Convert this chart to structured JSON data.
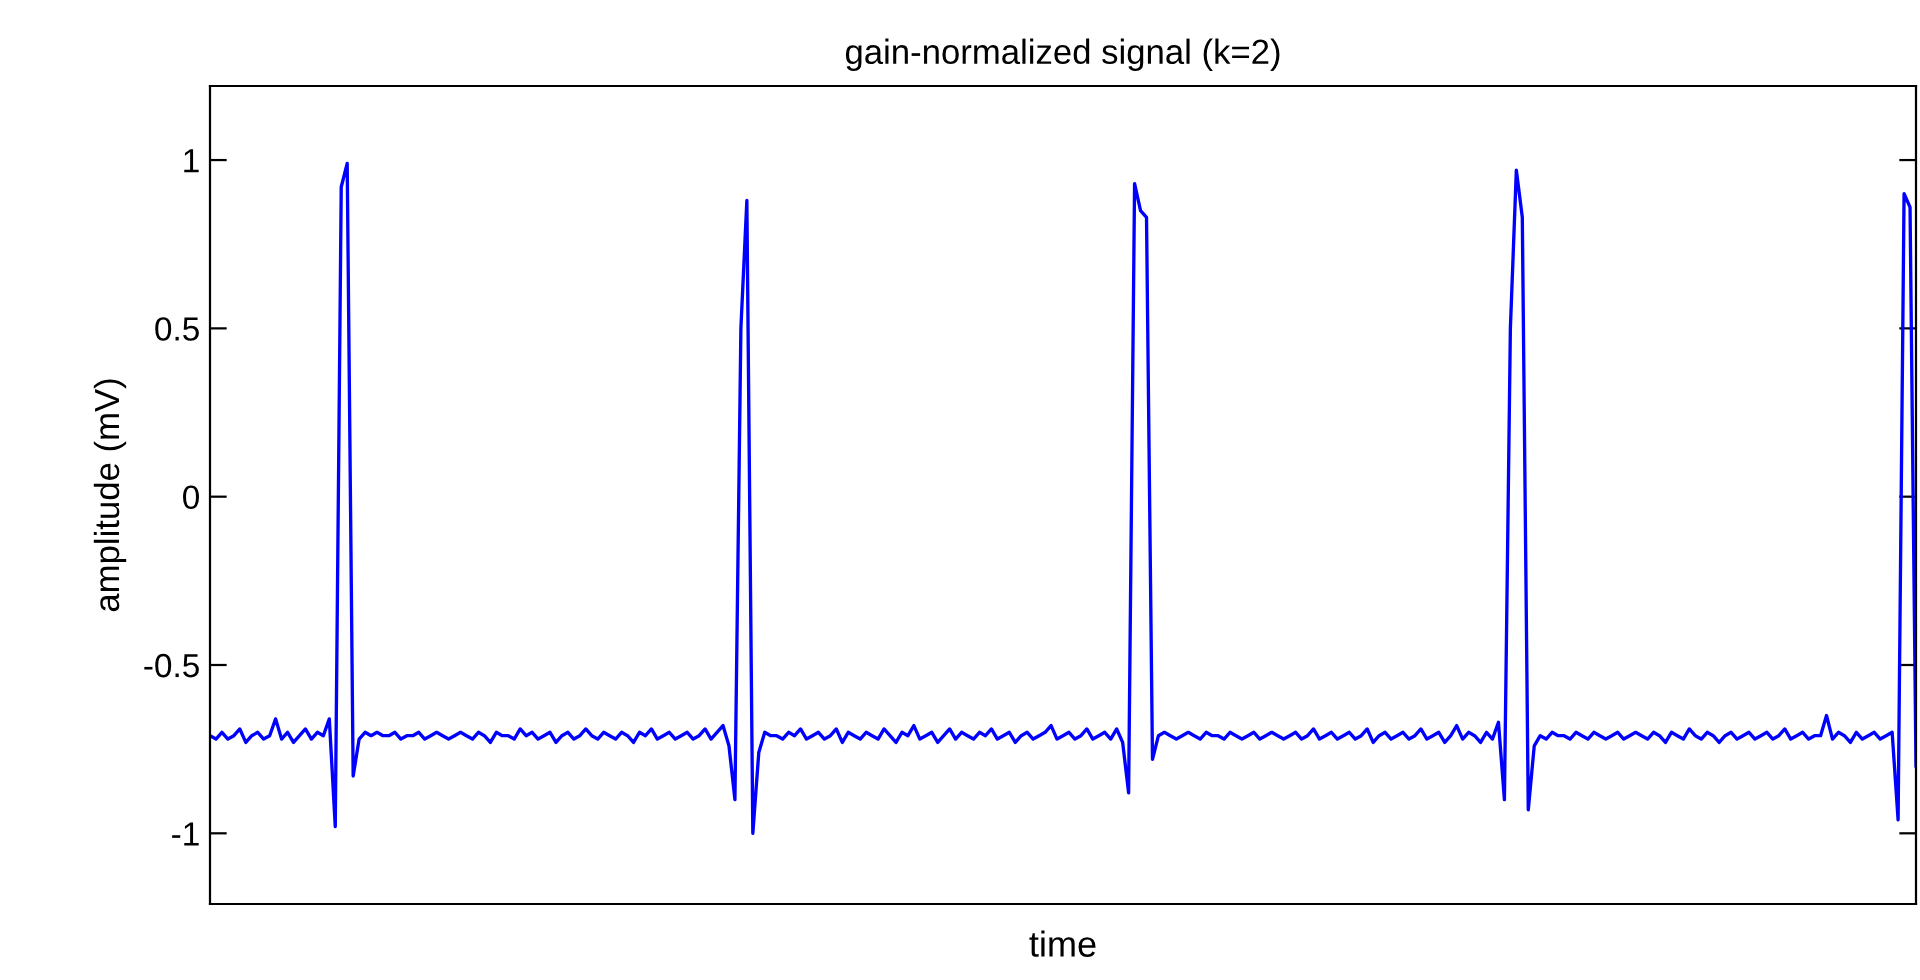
{
  "chart_data": {
    "type": "line",
    "title": "gain-normalized signal (k=2)",
    "xlabel": "time",
    "ylabel": "amplitude (mV)",
    "categories": [
      null,
      null,
      null,
      null,
      null,
      null,
      null,
      null,
      null,
      null,
      null,
      null,
      null,
      null,
      null,
      null,
      null,
      null,
      null,
      null,
      null,
      null,
      null,
      null,
      null,
      null,
      null,
      null,
      null,
      null,
      null,
      null,
      null,
      null,
      null,
      null,
      null,
      null,
      null,
      null,
      null,
      null,
      null,
      null,
      null,
      null,
      null,
      null,
      null,
      null,
      null,
      null,
      null,
      null,
      null,
      null,
      null,
      null,
      null,
      null,
      null,
      null,
      null,
      null,
      null,
      null,
      null,
      null,
      null,
      null,
      null,
      null,
      null,
      null,
      null,
      null,
      null,
      null,
      null,
      null,
      null,
      null,
      null,
      null,
      null,
      null,
      null,
      null,
      null,
      null,
      null,
      null,
      null,
      null,
      null,
      null,
      null,
      null,
      null,
      null,
      null,
      null,
      null,
      null,
      null,
      null,
      null,
      null,
      null,
      null,
      null,
      null,
      null,
      null,
      null,
      null,
      null,
      null,
      null,
      null,
      null,
      null,
      null,
      null,
      null,
      null,
      null,
      null,
      null,
      null,
      null,
      null,
      null,
      null,
      null,
      null,
      null,
      null,
      null,
      null,
      null,
      null,
      null,
      null,
      null,
      null,
      null,
      null,
      null,
      null,
      null,
      null,
      null,
      null,
      null,
      null,
      null,
      null,
      null,
      null,
      null,
      null,
      null,
      null,
      null,
      null,
      null,
      null,
      null,
      null,
      null,
      null,
      null,
      null,
      null,
      null,
      null,
      null,
      null,
      null,
      null,
      null,
      null,
      null,
      null,
      null,
      null,
      null,
      null,
      null,
      null,
      null,
      null,
      null,
      null,
      null,
      null,
      null,
      null,
      null,
      null,
      null,
      null,
      null,
      null,
      null,
      null,
      null,
      null,
      null,
      null,
      null,
      null,
      null,
      null,
      null,
      null,
      null,
      null,
      null,
      null,
      null,
      null,
      null,
      null,
      null,
      null,
      null,
      null,
      null,
      null,
      null,
      null,
      null,
      null,
      null,
      null,
      null,
      null,
      null,
      null,
      null,
      null,
      null,
      null,
      null,
      null,
      null,
      null,
      null,
      null,
      null,
      null,
      null,
      null,
      null,
      null,
      null,
      null,
      null,
      null,
      null,
      null,
      null,
      null,
      null,
      null,
      null,
      null,
      null,
      null,
      null,
      null,
      null,
      null,
      null,
      null,
      null,
      null,
      null,
      null,
      null,
      null,
      null,
      null,
      null,
      null
    ],
    "series": [
      {
        "color": "#0000ff",
        "values": [
          -0.71,
          -0.72,
          -0.7,
          -0.72,
          -0.71,
          -0.69,
          -0.73,
          -0.71,
          -0.7,
          -0.72,
          -0.71,
          -0.66,
          -0.72,
          -0.7,
          -0.73,
          -0.71,
          -0.69,
          -0.72,
          -0.7,
          -0.71,
          -0.66,
          -0.98,
          0.92,
          0.99,
          -0.83,
          -0.72,
          -0.7,
          -0.71,
          -0.7,
          -0.71,
          -0.71,
          -0.7,
          -0.72,
          -0.71,
          -0.71,
          -0.7,
          -0.72,
          -0.71,
          -0.7,
          -0.71,
          -0.72,
          -0.71,
          -0.7,
          -0.71,
          -0.72,
          -0.7,
          -0.71,
          -0.73,
          -0.7,
          -0.71,
          -0.71,
          -0.72,
          -0.69,
          -0.71,
          -0.7,
          -0.72,
          -0.71,
          -0.7,
          -0.73,
          -0.71,
          -0.7,
          -0.72,
          -0.71,
          -0.69,
          -0.71,
          -0.72,
          -0.7,
          -0.71,
          -0.72,
          -0.7,
          -0.71,
          -0.73,
          -0.7,
          -0.71,
          -0.69,
          -0.72,
          -0.71,
          -0.7,
          -0.72,
          -0.71,
          -0.7,
          -0.72,
          -0.71,
          -0.69,
          -0.72,
          -0.7,
          -0.68,
          -0.74,
          -0.9,
          0.5,
          0.88,
          -1.0,
          -0.76,
          -0.7,
          -0.71,
          -0.71,
          -0.72,
          -0.7,
          -0.71,
          -0.69,
          -0.72,
          -0.71,
          -0.7,
          -0.72,
          -0.71,
          -0.69,
          -0.73,
          -0.7,
          -0.71,
          -0.72,
          -0.7,
          -0.71,
          -0.72,
          -0.69,
          -0.71,
          -0.73,
          -0.7,
          -0.71,
          -0.68,
          -0.72,
          -0.71,
          -0.7,
          -0.73,
          -0.71,
          -0.69,
          -0.72,
          -0.7,
          -0.71,
          -0.72,
          -0.7,
          -0.71,
          -0.69,
          -0.72,
          -0.71,
          -0.7,
          -0.73,
          -0.71,
          -0.7,
          -0.72,
          -0.71,
          -0.7,
          -0.68,
          -0.72,
          -0.71,
          -0.7,
          -0.72,
          -0.71,
          -0.69,
          -0.72,
          -0.71,
          -0.7,
          -0.72,
          -0.69,
          -0.73,
          -0.88,
          0.93,
          0.85,
          0.83,
          -0.78,
          -0.71,
          -0.7,
          -0.71,
          -0.72,
          -0.71,
          -0.7,
          -0.71,
          -0.72,
          -0.7,
          -0.71,
          -0.71,
          -0.72,
          -0.7,
          -0.71,
          -0.72,
          -0.71,
          -0.7,
          -0.72,
          -0.71,
          -0.7,
          -0.71,
          -0.72,
          -0.71,
          -0.7,
          -0.72,
          -0.71,
          -0.69,
          -0.72,
          -0.71,
          -0.7,
          -0.72,
          -0.71,
          -0.7,
          -0.72,
          -0.71,
          -0.69,
          -0.73,
          -0.71,
          -0.7,
          -0.72,
          -0.71,
          -0.7,
          -0.72,
          -0.71,
          -0.69,
          -0.72,
          -0.71,
          -0.7,
          -0.73,
          -0.71,
          -0.68,
          -0.72,
          -0.7,
          -0.71,
          -0.73,
          -0.7,
          -0.72,
          -0.67,
          -0.9,
          0.5,
          0.97,
          0.83,
          -0.93,
          -0.74,
          -0.71,
          -0.72,
          -0.7,
          -0.71,
          -0.71,
          -0.72,
          -0.7,
          -0.71,
          -0.72,
          -0.7,
          -0.71,
          -0.72,
          -0.71,
          -0.7,
          -0.72,
          -0.71,
          -0.7,
          -0.71,
          -0.72,
          -0.7,
          -0.71,
          -0.73,
          -0.7,
          -0.71,
          -0.72,
          -0.69,
          -0.71,
          -0.72,
          -0.7,
          -0.71,
          -0.73,
          -0.71,
          -0.7,
          -0.72,
          -0.71,
          -0.7,
          -0.72,
          -0.71,
          -0.7,
          -0.72,
          -0.71,
          -0.69,
          -0.72,
          -0.71,
          -0.7,
          -0.72,
          -0.71,
          -0.71,
          -0.65,
          -0.72,
          -0.7,
          -0.71,
          -0.73,
          -0.7,
          -0.72,
          -0.71,
          -0.7,
          -0.72,
          -0.71,
          -0.7,
          -0.96,
          0.9,
          0.86,
          -0.8
        ]
      }
    ],
    "ylim": [
      -1.21,
      1.22
    ],
    "yticks": [
      -1,
      -0.5,
      0,
      0.5,
      1
    ],
    "grid": false,
    "legend": false,
    "marker": "none",
    "line_style": "solid"
  }
}
